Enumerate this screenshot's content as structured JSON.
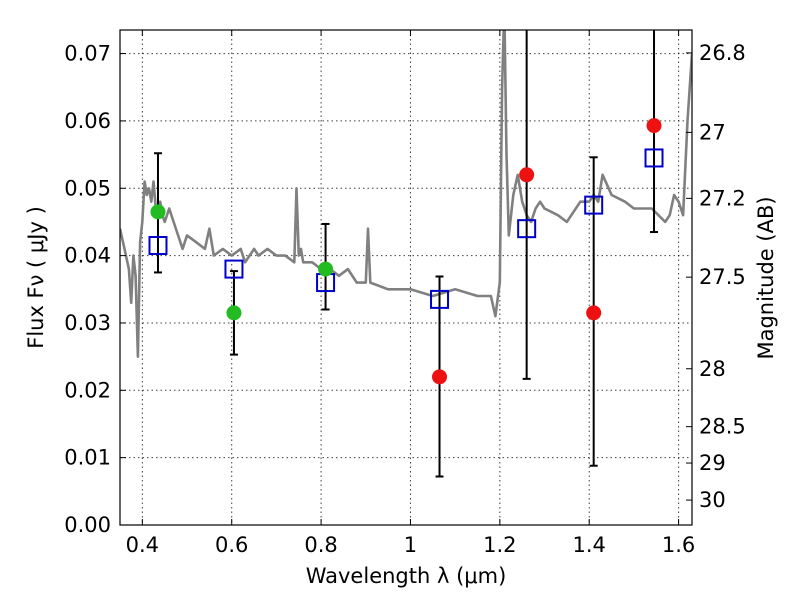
{
  "chart_data": {
    "type": "scatter",
    "title": "",
    "xlabel": "Wavelength  λ (μm)",
    "ylabel": "Flux  Fν  ( μJy )",
    "ylabel_right": "Magnitude (AB)",
    "xlim": [
      0.35,
      1.63
    ],
    "ylim": [
      0.0,
      0.0735
    ],
    "grid": true,
    "x_ticks": [
      0.4,
      0.6,
      0.8,
      1.0,
      1.2,
      1.4,
      1.6
    ],
    "x_tick_labels": [
      "0.4",
      "0.6",
      "0.8",
      "1",
      "1.2",
      "1.4",
      "1.6"
    ],
    "y_ticks": [
      0.0,
      0.01,
      0.02,
      0.03,
      0.04,
      0.05,
      0.06,
      0.07
    ],
    "y_tick_labels": [
      "0.00",
      "0.01",
      "0.02",
      "0.03",
      "0.04",
      "0.05",
      "0.06",
      "0.07"
    ],
    "right_ticks": [
      {
        "label": "26.8",
        "flux": 0.0701
      },
      {
        "label": "27",
        "flux": 0.0583
      },
      {
        "label": "27.2",
        "flux": 0.0485
      },
      {
        "label": "27.5",
        "flux": 0.0368
      },
      {
        "label": "28",
        "flux": 0.0232
      },
      {
        "label": "28.5",
        "flux": 0.0146
      },
      {
        "label": "29",
        "flux": 0.0092
      },
      {
        "label": "30",
        "flux": 0.0037
      }
    ],
    "series": [
      {
        "kind": "line",
        "color": "#808080",
        "x": [
          0.35,
          0.36,
          0.37,
          0.375,
          0.38,
          0.385,
          0.39,
          0.395,
          0.4,
          0.405,
          0.41,
          0.415,
          0.42,
          0.425,
          0.43,
          0.435,
          0.44,
          0.445,
          0.45,
          0.46,
          0.47,
          0.48,
          0.49,
          0.5,
          0.52,
          0.54,
          0.55,
          0.56,
          0.58,
          0.6,
          0.62,
          0.63,
          0.65,
          0.66,
          0.68,
          0.7,
          0.72,
          0.74,
          0.745,
          0.75,
          0.755,
          0.76,
          0.78,
          0.8,
          0.82,
          0.84,
          0.86,
          0.88,
          0.9,
          0.905,
          0.91,
          0.95,
          1.0,
          1.05,
          1.1,
          1.15,
          1.18,
          1.19,
          1.2,
          1.205,
          1.21,
          1.215,
          1.22,
          1.23,
          1.24,
          1.25,
          1.26,
          1.27,
          1.28,
          1.29,
          1.3,
          1.33,
          1.35,
          1.38,
          1.4,
          1.41,
          1.42,
          1.43,
          1.45,
          1.48,
          1.5,
          1.54,
          1.57,
          1.58,
          1.59,
          1.6,
          1.61,
          1.62,
          1.63
        ],
        "y": [
          0.044,
          0.041,
          0.038,
          0.033,
          0.04,
          0.037,
          0.025,
          0.042,
          0.045,
          0.051,
          0.049,
          0.05,
          0.048,
          0.051,
          0.047,
          0.046,
          0.048,
          0.046,
          0.045,
          0.047,
          0.045,
          0.043,
          0.041,
          0.043,
          0.042,
          0.041,
          0.044,
          0.04,
          0.041,
          0.04,
          0.041,
          0.039,
          0.041,
          0.04,
          0.041,
          0.04,
          0.04,
          0.039,
          0.05,
          0.04,
          0.041,
          0.039,
          0.039,
          0.038,
          0.038,
          0.037,
          0.038,
          0.036,
          0.036,
          0.044,
          0.036,
          0.035,
          0.035,
          0.034,
          0.035,
          0.034,
          0.034,
          0.031,
          0.036,
          0.065,
          0.077,
          0.055,
          0.043,
          0.049,
          0.052,
          0.048,
          0.046,
          0.045,
          0.047,
          0.048,
          0.047,
          0.046,
          0.045,
          0.048,
          0.048,
          0.049,
          0.048,
          0.052,
          0.049,
          0.048,
          0.047,
          0.047,
          0.045,
          0.046,
          0.049,
          0.048,
          0.046,
          0.06,
          0.07
        ]
      },
      {
        "kind": "model-squares",
        "color": "#0000cc",
        "x": [
          0.435,
          0.605,
          0.81,
          1.065,
          1.26,
          1.41,
          1.545
        ],
        "y": [
          0.0415,
          0.038,
          0.036,
          0.0335,
          0.044,
          0.0475,
          0.0545
        ]
      },
      {
        "kind": "green-points",
        "color": "#22bb22",
        "x": [
          0.435,
          0.605,
          0.81
        ],
        "y": [
          0.0465,
          0.0315,
          0.038
        ],
        "err_lo": [
          0.0375,
          0.0253,
          0.032
        ],
        "err_hi": [
          0.0552,
          0.0377,
          0.0447
        ]
      },
      {
        "kind": "red-points",
        "color": "#ee1111",
        "x": [
          1.065,
          1.26,
          1.41,
          1.545
        ],
        "y": [
          0.022,
          0.052,
          0.0315,
          0.0593
        ],
        "err_lo": [
          0.0072,
          0.0217,
          0.0088,
          0.0435
        ],
        "err_hi": [
          0.0369,
          0.0735,
          0.0546,
          0.0735
        ]
      }
    ]
  }
}
